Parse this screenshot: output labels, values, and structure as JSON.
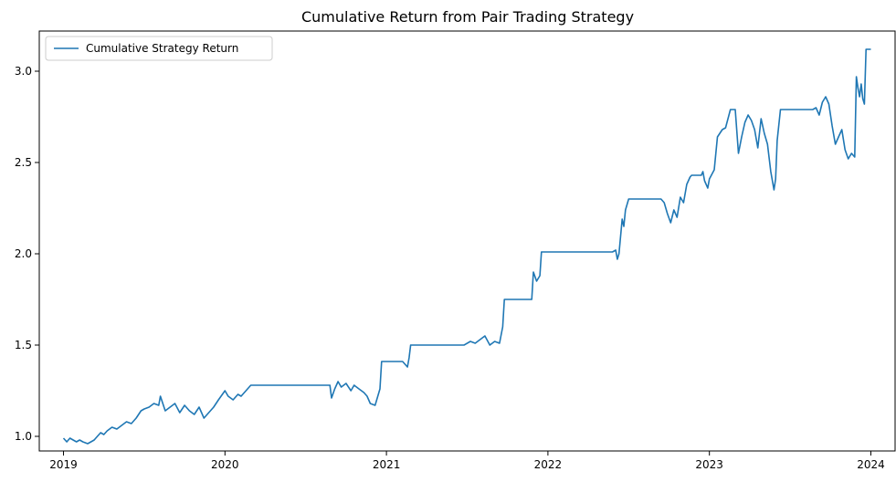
{
  "chart_data": {
    "type": "line",
    "title": "Cumulative Return from Pair Trading Strategy",
    "xlabel": "",
    "ylabel": "",
    "xlim": [
      2018.85,
      2024.15
    ],
    "ylim": [
      0.92,
      3.22
    ],
    "x_ticks": [
      2019,
      2020,
      2021,
      2022,
      2023,
      2024
    ],
    "x_tick_labels": [
      "2019",
      "2020",
      "2021",
      "2022",
      "2023",
      "2024"
    ],
    "y_ticks": [
      1.0,
      1.5,
      2.0,
      2.5,
      3.0
    ],
    "y_tick_labels": [
      "1.0",
      "1.5",
      "2.0",
      "2.5",
      "3.0"
    ],
    "legend_position": "top-left",
    "grid": false,
    "series": [
      {
        "name": "Cumulative Strategy Return",
        "color": "#1f77b4",
        "x": [
          2019.0,
          2019.02,
          2019.04,
          2019.06,
          2019.08,
          2019.1,
          2019.12,
          2019.15,
          2019.17,
          2019.19,
          2019.21,
          2019.23,
          2019.25,
          2019.27,
          2019.3,
          2019.33,
          2019.36,
          2019.39,
          2019.42,
          2019.45,
          2019.48,
          2019.5,
          2019.53,
          2019.56,
          2019.59,
          2019.6,
          2019.63,
          2019.66,
          2019.69,
          2019.72,
          2019.75,
          2019.78,
          2019.81,
          2019.84,
          2019.87,
          2019.9,
          2019.93,
          2019.96,
          2020.0,
          2020.02,
          2020.05,
          2020.08,
          2020.1,
          2020.13,
          2020.16,
          2020.5,
          2020.65,
          2020.66,
          2020.68,
          2020.7,
          2020.72,
          2020.75,
          2020.78,
          2020.8,
          2020.83,
          2020.86,
          2020.88,
          2020.9,
          2020.93,
          2020.96,
          2020.97,
          2021.0,
          2021.1,
          2021.13,
          2021.14,
          2021.15,
          2021.3,
          2021.48,
          2021.52,
          2021.55,
          2021.58,
          2021.61,
          2021.64,
          2021.67,
          2021.7,
          2021.72,
          2021.73,
          2021.9,
          2021.91,
          2021.93,
          2021.95,
          2021.96,
          2022.1,
          2022.3,
          2022.4,
          2022.42,
          2022.43,
          2022.44,
          2022.46,
          2022.47,
          2022.48,
          2022.5,
          2022.6,
          2022.7,
          2022.72,
          2022.74,
          2022.76,
          2022.78,
          2022.8,
          2022.82,
          2022.84,
          2022.86,
          2022.88,
          2022.89,
          2022.95,
          2022.96,
          2022.97,
          2022.99,
          2023.0,
          2023.03,
          2023.05,
          2023.08,
          2023.1,
          2023.13,
          2023.14,
          2023.16,
          2023.18,
          2023.2,
          2023.22,
          2023.24,
          2023.26,
          2023.28,
          2023.3,
          2023.32,
          2023.34,
          2023.36,
          2023.38,
          2023.4,
          2023.41,
          2023.42,
          2023.44,
          2023.6,
          2023.64,
          2023.66,
          2023.68,
          2023.7,
          2023.72,
          2023.74,
          2023.76,
          2023.78,
          2023.8,
          2023.82,
          2023.84,
          2023.86,
          2023.88,
          2023.9,
          2023.91,
          2023.92,
          2023.93,
          2023.94,
          2023.95,
          2023.96,
          2023.97,
          2024.0
        ],
        "values": [
          0.99,
          0.97,
          0.99,
          0.98,
          0.97,
          0.98,
          0.97,
          0.96,
          0.97,
          0.98,
          1.0,
          1.02,
          1.01,
          1.03,
          1.05,
          1.04,
          1.06,
          1.08,
          1.07,
          1.1,
          1.14,
          1.15,
          1.16,
          1.18,
          1.17,
          1.22,
          1.14,
          1.16,
          1.18,
          1.13,
          1.17,
          1.14,
          1.12,
          1.16,
          1.1,
          1.13,
          1.16,
          1.2,
          1.25,
          1.22,
          1.2,
          1.23,
          1.22,
          1.25,
          1.28,
          1.28,
          1.28,
          1.21,
          1.26,
          1.3,
          1.27,
          1.29,
          1.25,
          1.28,
          1.26,
          1.24,
          1.22,
          1.18,
          1.17,
          1.26,
          1.41,
          1.41,
          1.41,
          1.38,
          1.43,
          1.5,
          1.5,
          1.5,
          1.52,
          1.51,
          1.53,
          1.55,
          1.5,
          1.52,
          1.51,
          1.6,
          1.75,
          1.75,
          1.9,
          1.85,
          1.88,
          2.01,
          2.01,
          2.01,
          2.01,
          2.02,
          1.97,
          2.0,
          2.19,
          2.15,
          2.24,
          2.3,
          2.3,
          2.3,
          2.28,
          2.22,
          2.17,
          2.24,
          2.2,
          2.31,
          2.28,
          2.38,
          2.42,
          2.43,
          2.43,
          2.45,
          2.4,
          2.36,
          2.41,
          2.46,
          2.64,
          2.68,
          2.69,
          2.79,
          2.79,
          2.79,
          2.55,
          2.64,
          2.72,
          2.76,
          2.73,
          2.68,
          2.58,
          2.74,
          2.66,
          2.6,
          2.45,
          2.35,
          2.41,
          2.62,
          2.79,
          2.79,
          2.79,
          2.8,
          2.76,
          2.83,
          2.86,
          2.82,
          2.7,
          2.6,
          2.64,
          2.68,
          2.57,
          2.52,
          2.55,
          2.53,
          2.97,
          2.91,
          2.86,
          2.93,
          2.85,
          2.82,
          3.12,
          3.12
        ]
      }
    ]
  }
}
